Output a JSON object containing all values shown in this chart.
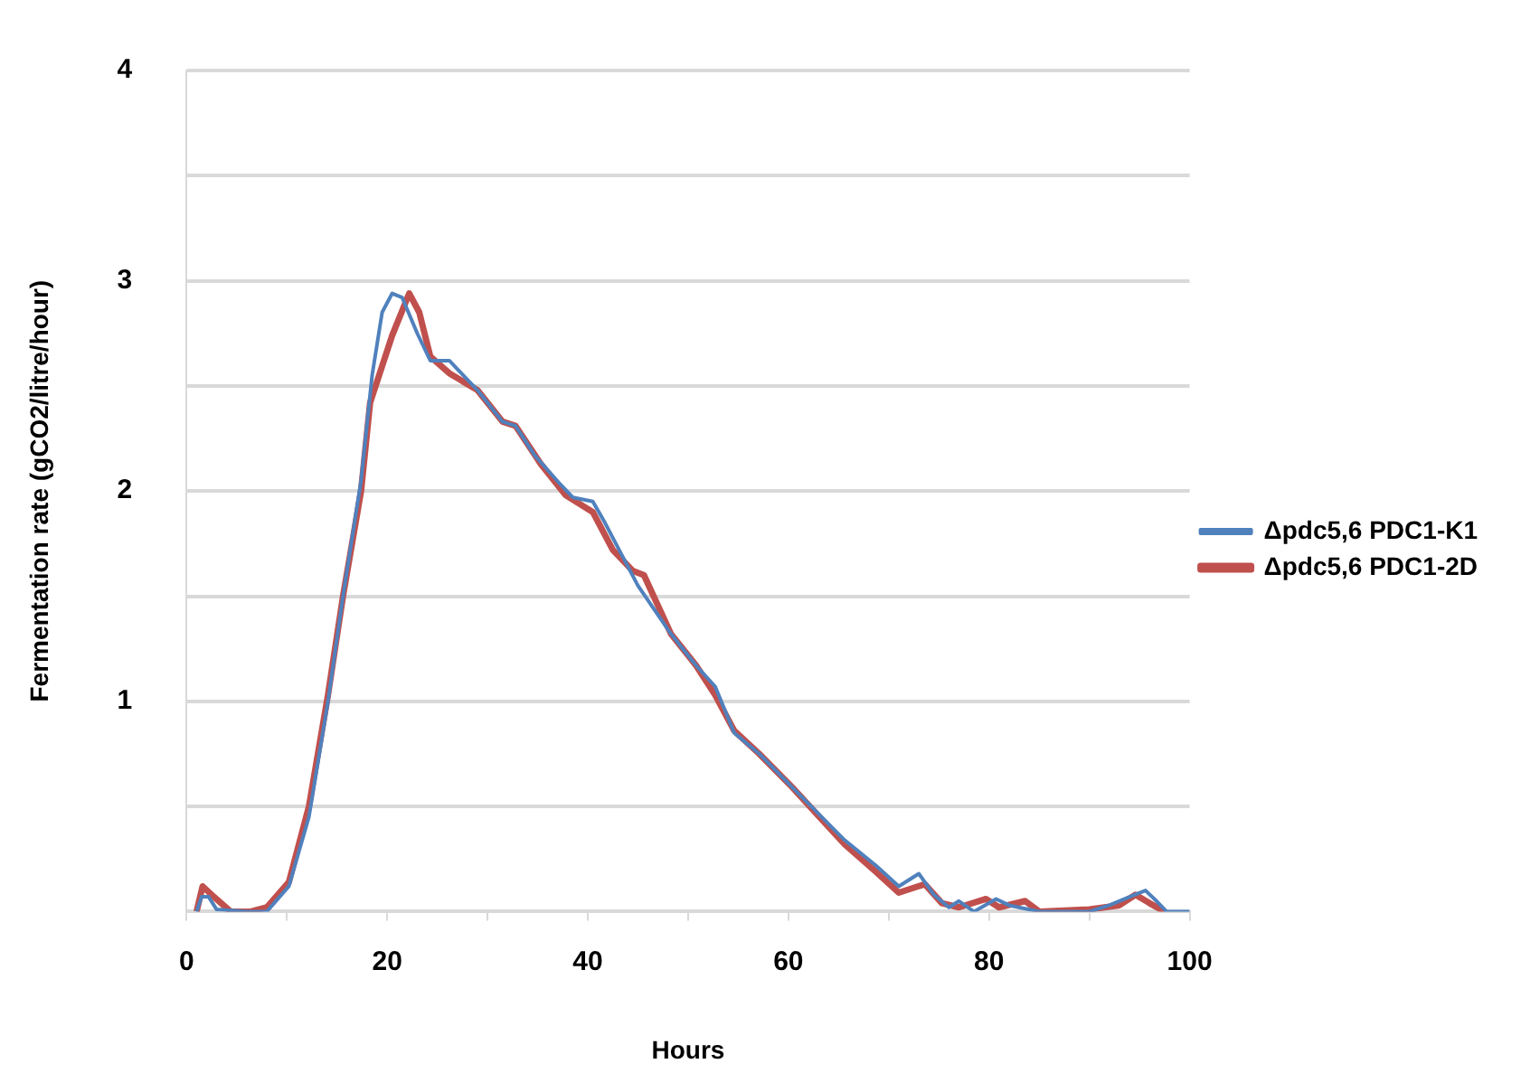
{
  "chart_data": {
    "type": "line",
    "xlabel": "Hours",
    "ylabel": "Fermentation rate (gCO2/litre/hour)",
    "xlim": [
      0,
      100
    ],
    "xticks": [
      0,
      {
        "value": 10,
        "label": null
      },
      20,
      {
        "value": 30,
        "label": null
      },
      40,
      {
        "value": 50,
        "label": null
      },
      60,
      {
        "value": 70,
        "label": null
      },
      80,
      {
        "value": 90,
        "label": null
      },
      100
    ],
    "ylim": [
      0,
      4
    ],
    "yticks": [
      {
        "value": 0,
        "label": null
      },
      {
        "value": 0.5,
        "label": null
      },
      1,
      {
        "value": 1.5,
        "label": null
      },
      2,
      {
        "value": 2.5,
        "label": null
      },
      3,
      {
        "value": 3.5,
        "label": null
      },
      4
    ],
    "grid": "y",
    "legend": "right",
    "marker": "none",
    "line_style": "solid",
    "series": [
      {
        "name": "Δpdc5,6 PDC1-K1",
        "color": "#4f81bd",
        "x": [
          1,
          1.5,
          2.2,
          3,
          6,
          8,
          10.2,
          12.2,
          14.1,
          15.6,
          17.4,
          18.5,
          19.5,
          20.5,
          21.5,
          23,
          24.3,
          26.2,
          27,
          29,
          31.5,
          32.8,
          34.7,
          37.3,
          38.5,
          40.5,
          41.7,
          45,
          48.3,
          50.8,
          52.7,
          54.6,
          57.1,
          60.4,
          62.9,
          65.6,
          68.7,
          71,
          73,
          74.5,
          76,
          77,
          78.5,
          80.7,
          82,
          85,
          90,
          92,
          94.5,
          95.6,
          96.7,
          97.7,
          100
        ],
        "values": [
          0,
          0.07,
          0.07,
          0.01,
          0,
          0,
          0.12,
          0.45,
          1.0,
          1.5,
          2.05,
          2.55,
          2.85,
          2.94,
          2.92,
          2.75,
          2.62,
          2.62,
          2.58,
          2.48,
          2.33,
          2.31,
          2.17,
          2.03,
          1.97,
          1.95,
          1.85,
          1.55,
          1.32,
          1.17,
          1.07,
          0.85,
          0.75,
          0.59,
          0.47,
          0.34,
          0.22,
          0.12,
          0.18,
          0.08,
          0.02,
          0.05,
          0,
          0.06,
          0.03,
          0,
          0,
          0.03,
          0.08,
          0.1,
          0.05,
          0,
          0
        ]
      },
      {
        "name": "Δpdc5,6 PDC1-2D",
        "color": "#c0504d",
        "x": [
          1,
          1.6,
          2.5,
          4.4,
          6.4,
          8,
          10.2,
          12.2,
          14.1,
          15.6,
          17.4,
          18.3,
          20.5,
          22.2,
          23.2,
          24.3,
          26.2,
          29,
          31.5,
          32.8,
          35.3,
          37.8,
          40.5,
          42.5,
          44.5,
          45.6,
          48.3,
          50.8,
          52.7,
          54.6,
          57.1,
          60.4,
          62.9,
          65.6,
          68.7,
          71,
          73.6,
          75.3,
          77,
          79.7,
          81,
          83.6,
          85,
          90,
          93,
          94.6,
          96,
          97.5
        ],
        "values": [
          0,
          0.12,
          0.08,
          0,
          0,
          0.02,
          0.14,
          0.5,
          1.03,
          1.5,
          2.0,
          2.42,
          2.74,
          2.94,
          2.85,
          2.64,
          2.56,
          2.48,
          2.33,
          2.31,
          2.13,
          1.98,
          1.9,
          1.72,
          1.62,
          1.6,
          1.32,
          1.17,
          1.03,
          0.86,
          0.75,
          0.59,
          0.46,
          0.32,
          0.19,
          0.09,
          0.13,
          0.04,
          0.02,
          0.06,
          0.02,
          0.05,
          0,
          0.01,
          0.03,
          0.08,
          0.04,
          0
        ]
      }
    ]
  }
}
